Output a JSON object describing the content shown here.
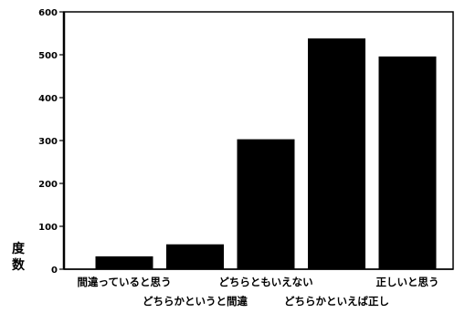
{
  "chart_data": {
    "type": "bar",
    "categories": [
      "間違っていると思う",
      "どちらかというと間違",
      "どちらともいえない",
      "どちらかといえば正し",
      "正しいと思う"
    ],
    "values": [
      30,
      58,
      303,
      538,
      496
    ],
    "ylabel": "度数",
    "ylabel_chars": [
      "度",
      "数"
    ],
    "ylim": [
      0,
      600
    ],
    "yticks": [
      "0",
      "100",
      "200",
      "300",
      "400",
      "500",
      "600"
    ],
    "bar_color": "#000000",
    "grid": false,
    "legend": "none"
  }
}
